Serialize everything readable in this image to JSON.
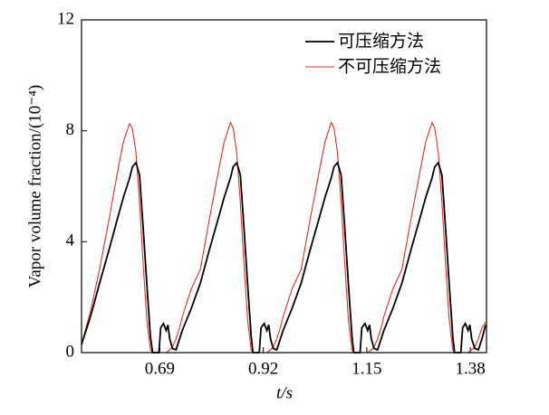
{
  "chart_data": {
    "type": "line",
    "x_label": "t/s",
    "y_label": "Vapor volume fraction/(10⁻⁴)",
    "x": [
      0.516,
      0.536,
      0.556,
      0.577,
      0.597,
      0.609,
      0.617,
      0.623,
      0.629,
      0.637,
      0.645,
      0.653,
      0.661,
      0.669,
      0.674,
      0.682,
      0.688,
      0.692,
      0.698,
      0.704,
      0.708,
      0.712,
      0.718,
      0.726,
      0.734,
      0.74,
      0.76,
      0.78,
      0.8,
      0.821,
      0.833,
      0.841,
      0.847,
      0.853,
      0.861,
      0.869,
      0.877,
      0.885,
      0.893,
      0.897,
      0.905,
      0.911,
      0.915,
      0.922,
      0.928,
      0.932,
      0.936,
      0.942,
      0.95,
      0.958,
      0.964,
      0.984,
      1.004,
      1.024,
      1.045,
      1.057,
      1.065,
      1.071,
      1.077,
      1.085,
      1.093,
      1.101,
      1.109,
      1.117,
      1.121,
      1.129,
      1.135,
      1.139,
      1.146,
      1.152,
      1.156,
      1.16,
      1.166,
      1.174,
      1.182,
      1.188,
      1.208,
      1.228,
      1.248,
      1.269,
      1.281,
      1.289,
      1.295,
      1.301,
      1.309,
      1.317,
      1.325,
      1.333,
      1.341,
      1.345,
      1.353,
      1.359,
      1.363,
      1.369,
      1.375,
      1.379,
      1.383,
      1.39,
      1.398,
      1.406,
      1.414
    ],
    "series": [
      {
        "name": "可压缩方法",
        "color": "#000000",
        "values": [
          0.3,
          1.3,
          2.5,
          3.7,
          4.9,
          5.6,
          6.0,
          6.3,
          6.7,
          6.85,
          6.4,
          4.5,
          2.5,
          0.6,
          0,
          0,
          0,
          0.9,
          1.05,
          0.8,
          1.0,
          0.5,
          0.15,
          0.1,
          0.5,
          0.8,
          1.6,
          2.5,
          3.7,
          4.9,
          5.6,
          6.0,
          6.3,
          6.7,
          6.85,
          6.4,
          4.5,
          2.5,
          0.6,
          0,
          0,
          0,
          0.9,
          1.05,
          0.8,
          1.0,
          0.5,
          0.15,
          0.1,
          0.5,
          0.8,
          1.6,
          2.5,
          3.7,
          4.9,
          5.6,
          6.0,
          6.3,
          6.7,
          6.85,
          6.4,
          4.5,
          2.5,
          0.6,
          0,
          0,
          0,
          0.9,
          1.05,
          0.8,
          1.0,
          0.5,
          0.15,
          0.1,
          0.5,
          0.8,
          1.6,
          2.5,
          3.7,
          4.9,
          5.6,
          6.0,
          6.3,
          6.7,
          6.85,
          6.4,
          4.5,
          2.5,
          0.6,
          0,
          0,
          0,
          0.9,
          1.05,
          0.8,
          1.0,
          0.5,
          0.15,
          0.1,
          0.5,
          1.0
        ]
      },
      {
        "name": "不可压缩方法",
        "color": "#e0301e",
        "values": [
          0.3,
          1.5,
          3.0,
          4.8,
          6.6,
          7.6,
          8.0,
          8.25,
          8.1,
          7.2,
          5.4,
          3.2,
          1.2,
          0.1,
          0,
          0,
          0,
          0,
          0,
          0,
          0.05,
          0.1,
          0.2,
          0.5,
          0.9,
          1.3,
          2.3,
          3.0,
          4.8,
          6.6,
          7.6,
          8.0,
          8.3,
          8.1,
          7.2,
          5.4,
          3.2,
          1.2,
          0.1,
          0,
          0,
          0,
          0,
          0,
          0,
          0.05,
          0.1,
          0.2,
          0.5,
          0.9,
          1.3,
          2.3,
          3.0,
          4.8,
          6.6,
          7.6,
          8.0,
          8.3,
          8.1,
          7.2,
          5.4,
          3.2,
          1.2,
          0.1,
          0,
          0,
          0,
          0,
          0,
          0,
          0.05,
          0.1,
          0.2,
          0.5,
          0.9,
          1.3,
          2.3,
          3.0,
          4.8,
          6.6,
          7.6,
          8.0,
          8.3,
          8.1,
          7.2,
          5.4,
          3.2,
          1.2,
          0.1,
          0,
          0,
          0,
          0,
          0,
          0,
          0.05,
          0.1,
          0.2,
          0.5,
          0.9,
          1.1
        ]
      }
    ],
    "xlim": [
      0.516,
      1.416
    ],
    "xticks": [
      0.69,
      0.92,
      1.15,
      1.38
    ],
    "ylim": [
      0,
      12
    ],
    "yticks": [
      0,
      4,
      8,
      12
    ],
    "legend": "upper right",
    "grid": false
  }
}
